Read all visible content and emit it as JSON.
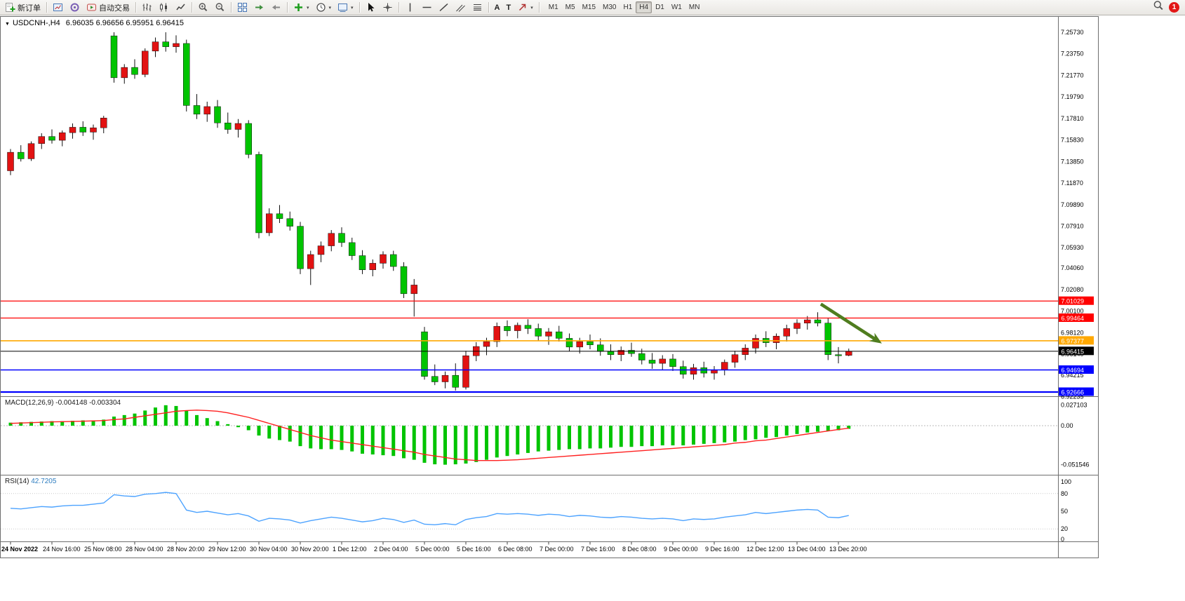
{
  "toolbar": {
    "new_order_label": "新订单",
    "auto_trading_label": "自动交易",
    "text_tool_label": "A",
    "label_tool_label": "T",
    "timeframes": [
      "M1",
      "M5",
      "M15",
      "M30",
      "H1",
      "H4",
      "D1",
      "W1",
      "MN"
    ],
    "active_timeframe": "H4",
    "notification_count": "1"
  },
  "chart": {
    "symbol": "USDCNH-,H4",
    "ohlc_text": "6.96035 6.96656 6.95951 6.96415",
    "macd_title": "MACD(12,26,9)",
    "macd_values": "-0.004148 -0.003304",
    "rsi_title": "RSI(14)",
    "rsi_value": "42.7205"
  },
  "chart_data": {
    "type": "candlestick",
    "symbol": "USDCNH-",
    "timeframe": "H4",
    "x_label_step": 4,
    "x_labels": [
      "24 Nov 2022",
      "24 Nov 16:00",
      "25 Nov 08:00",
      "28 Nov 04:00",
      "28 Nov 20:00",
      "29 Nov 12:00",
      "30 Nov 04:00",
      "30 Nov 20:00",
      "1 Dec 12:00",
      "2 Dec 04:00",
      "5 Dec 00:00",
      "5 Dec 16:00",
      "6 Dec 08:00",
      "7 Dec 00:00",
      "7 Dec 16:00",
      "8 Dec 08:00",
      "9 Dec 00:00",
      "9 Dec 16:00",
      "12 Dec 12:00",
      "13 Dec 04:00",
      "13 Dec 20:00"
    ],
    "price_axis_labels": [
      "7.25730",
      "7.23750",
      "7.21770",
      "7.19790",
      "7.17810",
      "7.15830",
      "7.13850",
      "7.11870",
      "7.09890",
      "7.07910",
      "7.05930",
      "7.04060",
      "7.02080",
      "7.00100",
      "6.98120",
      "6.96140",
      "6.94215",
      "6.92235"
    ],
    "ohlc": [
      [
        7.13,
        7.15,
        7.126,
        7.147
      ],
      [
        7.147,
        7.1535,
        7.1385,
        7.141
      ],
      [
        7.141,
        7.157,
        7.139,
        7.155
      ],
      [
        7.155,
        7.1645,
        7.15,
        7.1615
      ],
      [
        7.1615,
        7.168,
        7.155,
        7.158
      ],
      [
        7.158,
        7.167,
        7.1525,
        7.165
      ],
      [
        7.165,
        7.1735,
        7.1595,
        7.17
      ],
      [
        7.17,
        7.1755,
        7.162,
        7.1655
      ],
      [
        7.1655,
        7.1725,
        7.1585,
        7.1695
      ],
      [
        7.1695,
        7.1805,
        7.1645,
        7.1785
      ],
      [
        7.254,
        7.2573,
        7.211,
        7.2155
      ],
      [
        7.2155,
        7.228,
        7.21,
        7.225
      ],
      [
        7.225,
        7.2325,
        7.2145,
        7.2185
      ],
      [
        7.2185,
        7.2425,
        7.216,
        7.24
      ],
      [
        7.24,
        7.2525,
        7.2345,
        7.2485
      ],
      [
        7.2485,
        7.2573,
        7.2395,
        7.244
      ],
      [
        7.244,
        7.2545,
        7.2385,
        7.247
      ],
      [
        7.247,
        7.2505,
        7.1845,
        7.19
      ],
      [
        7.19,
        7.2005,
        7.1775,
        7.182
      ],
      [
        7.182,
        7.1935,
        7.175,
        7.189
      ],
      [
        7.189,
        7.195,
        7.1695,
        7.174
      ],
      [
        7.174,
        7.1835,
        7.164,
        7.168
      ],
      [
        7.168,
        7.1775,
        7.1605,
        7.1735
      ],
      [
        7.1735,
        7.1765,
        7.1415,
        7.145
      ],
      [
        7.145,
        7.1475,
        7.068,
        7.073
      ],
      [
        7.073,
        7.0955,
        7.07,
        7.0905
      ],
      [
        7.0905,
        7.0985,
        7.082,
        7.086
      ],
      [
        7.086,
        7.0925,
        7.075,
        7.079
      ],
      [
        7.079,
        7.083,
        7.035,
        7.04
      ],
      [
        7.04,
        7.0565,
        7.025,
        7.053
      ],
      [
        7.053,
        7.065,
        7.046,
        7.061
      ],
      [
        7.061,
        7.0755,
        7.056,
        7.0725
      ],
      [
        7.0725,
        7.078,
        7.06,
        7.064
      ],
      [
        7.064,
        7.0685,
        7.048,
        7.052
      ],
      [
        7.052,
        7.057,
        7.035,
        7.039
      ],
      [
        7.039,
        7.0485,
        7.033,
        7.045
      ],
      [
        7.045,
        7.056,
        7.04,
        7.053
      ],
      [
        7.053,
        7.0565,
        7.038,
        7.042
      ],
      [
        7.042,
        7.046,
        7.013,
        7.017
      ],
      [
        7.017,
        7.0305,
        6.996,
        7.025
      ],
      [
        6.982,
        6.9865,
        6.938,
        6.941
      ],
      [
        6.941,
        6.952,
        6.933,
        6.936
      ],
      [
        6.936,
        6.9455,
        6.93,
        6.942
      ],
      [
        6.942,
        6.953,
        6.928,
        6.931
      ],
      [
        6.931,
        6.9645,
        6.929,
        6.96
      ],
      [
        6.96,
        6.9725,
        6.955,
        6.9685
      ],
      [
        6.9685,
        6.9765,
        6.9605,
        6.973
      ],
      [
        6.973,
        6.9905,
        6.968,
        6.987
      ],
      [
        6.987,
        6.9925,
        6.978,
        6.983
      ],
      [
        6.983,
        6.9905,
        6.976,
        6.988
      ],
      [
        6.988,
        6.9935,
        6.98,
        6.985
      ],
      [
        6.985,
        6.9895,
        6.974,
        6.978
      ],
      [
        6.978,
        6.9855,
        6.97,
        6.982
      ],
      [
        6.982,
        6.9875,
        6.973,
        6.976
      ],
      [
        6.976,
        6.9805,
        6.964,
        6.968
      ],
      [
        6.968,
        6.9765,
        6.962,
        6.973
      ],
      [
        6.973,
        6.9795,
        6.966,
        6.97
      ],
      [
        6.97,
        6.976,
        6.96,
        6.964
      ],
      [
        6.964,
        6.9705,
        6.956,
        6.961
      ],
      [
        6.961,
        6.9685,
        6.955,
        6.965
      ],
      [
        6.965,
        6.972,
        6.959,
        6.962
      ],
      [
        6.962,
        6.9665,
        6.952,
        6.956
      ],
      [
        6.956,
        6.9625,
        6.948,
        6.953
      ],
      [
        6.953,
        6.9605,
        6.947,
        6.957
      ],
      [
        6.957,
        6.9615,
        6.946,
        6.95
      ],
      [
        6.95,
        6.9555,
        6.939,
        6.943
      ],
      [
        6.943,
        6.9525,
        6.938,
        6.949
      ],
      [
        6.949,
        6.9545,
        6.94,
        6.944
      ],
      [
        6.944,
        6.9505,
        6.938,
        6.947
      ],
      [
        6.947,
        6.9565,
        6.942,
        6.954
      ],
      [
        6.954,
        6.9645,
        6.949,
        6.961
      ],
      [
        6.961,
        6.9705,
        6.956,
        6.967
      ],
      [
        6.967,
        6.9795,
        6.962,
        6.976
      ],
      [
        6.976,
        6.9825,
        6.968,
        6.972
      ],
      [
        6.972,
        6.9805,
        6.966,
        6.978
      ],
      [
        6.978,
        6.9885,
        6.973,
        6.985
      ],
      [
        6.985,
        6.9935,
        6.98,
        6.99
      ],
      [
        6.99,
        6.9965,
        6.984,
        6.993
      ],
      [
        6.993,
        7.0,
        6.987,
        6.99
      ],
      [
        6.99,
        6.9945,
        6.956,
        6.961
      ],
      [
        6.961,
        6.968,
        6.953,
        6.96
      ],
      [
        6.96035,
        6.96656,
        6.95951,
        6.96415
      ]
    ],
    "price_lines": [
      {
        "price": 7.01029,
        "label": "7.01029",
        "color": "#ff0000",
        "width": 1.3
      },
      {
        "price": 6.99464,
        "label": "6.99464",
        "color": "#ff0000",
        "width": 1.3
      },
      {
        "price": 6.97377,
        "label": "6.97377",
        "color": "#ffa800",
        "width": 1.6
      },
      {
        "price": 6.96415,
        "label": "6.96415",
        "color": "#000000",
        "width": 1
      },
      {
        "price": 6.94694,
        "label": "6.94694",
        "color": "#0000ff",
        "width": 1.5
      },
      {
        "price": 6.92666,
        "label": "6.92666",
        "color": "#0000ff",
        "width": 2.2
      }
    ],
    "macd": {
      "axis_labels": [
        "0.027103",
        "0.00",
        "-0.051546"
      ],
      "histogram": [
        0.004,
        0.0045,
        0.005,
        0.0055,
        0.006,
        0.006,
        0.0065,
        0.007,
        0.007,
        0.008,
        0.012,
        0.014,
        0.016,
        0.02,
        0.024,
        0.027,
        0.026,
        0.02,
        0.014,
        0.01,
        0.006,
        0.002,
        -0.002,
        -0.006,
        -0.013,
        -0.017,
        -0.019,
        -0.021,
        -0.027,
        -0.03,
        -0.031,
        -0.031,
        -0.032,
        -0.034,
        -0.037,
        -0.038,
        -0.039,
        -0.04,
        -0.043,
        -0.045,
        -0.049,
        -0.051,
        -0.0515,
        -0.051,
        -0.05,
        -0.048,
        -0.045,
        -0.042,
        -0.04,
        -0.038,
        -0.036,
        -0.034,
        -0.033,
        -0.032,
        -0.031,
        -0.031,
        -0.03,
        -0.03,
        -0.029,
        -0.028,
        -0.028,
        -0.027,
        -0.027,
        -0.026,
        -0.026,
        -0.026,
        -0.025,
        -0.024,
        -0.023,
        -0.022,
        -0.021,
        -0.019,
        -0.018,
        -0.016,
        -0.015,
        -0.013,
        -0.011,
        -0.009,
        -0.008,
        -0.007,
        -0.006,
        -0.004148
      ],
      "signal": [
        0.003,
        0.0035,
        0.004,
        0.0045,
        0.005,
        0.0053,
        0.0056,
        0.006,
        0.0063,
        0.0068,
        0.008,
        0.009,
        0.011,
        0.013,
        0.015,
        0.017,
        0.019,
        0.02,
        0.0205,
        0.02,
        0.019,
        0.017,
        0.014,
        0.011,
        0.007,
        0.003,
        -0.001,
        -0.005,
        -0.009,
        -0.013,
        -0.016,
        -0.019,
        -0.021,
        -0.023,
        -0.025,
        -0.027,
        -0.029,
        -0.031,
        -0.033,
        -0.035,
        -0.038,
        -0.04,
        -0.042,
        -0.044,
        -0.045,
        -0.046,
        -0.046,
        -0.046,
        -0.0455,
        -0.045,
        -0.044,
        -0.043,
        -0.042,
        -0.041,
        -0.04,
        -0.039,
        -0.038,
        -0.037,
        -0.036,
        -0.035,
        -0.034,
        -0.033,
        -0.032,
        -0.031,
        -0.03,
        -0.029,
        -0.028,
        -0.027,
        -0.026,
        -0.025,
        -0.023,
        -0.022,
        -0.02,
        -0.019,
        -0.017,
        -0.015,
        -0.013,
        -0.011,
        -0.009,
        -0.007,
        -0.005,
        -0.003304
      ]
    },
    "rsi": {
      "axis_labels": [
        "100",
        "80",
        "50",
        "20",
        "0"
      ],
      "levels": [
        80,
        20
      ],
      "values": [
        55,
        54,
        56,
        58,
        57,
        59,
        60,
        60,
        62,
        64,
        78,
        76,
        75,
        79,
        80,
        82,
        80,
        52,
        48,
        50,
        47,
        44,
        46,
        42,
        33,
        38,
        37,
        35,
        30,
        34,
        37,
        40,
        38,
        35,
        32,
        34,
        38,
        36,
        31,
        35,
        28,
        27,
        29,
        27,
        36,
        39,
        41,
        46,
        45,
        46,
        45,
        43,
        45,
        44,
        41,
        43,
        42,
        40,
        39,
        41,
        40,
        38,
        37,
        38,
        37,
        34,
        37,
        36,
        37,
        40,
        42,
        44,
        48,
        46,
        48,
        50,
        52,
        53,
        52,
        40,
        39,
        42.72
      ]
    },
    "arrow": {
      "from_bar": 78.3,
      "from_price": 7.0075,
      "to_bar": 84.2,
      "to_price": 6.9713
    },
    "colors": {
      "up": "#e21212",
      "down": "#00c400",
      "macd_histogram": "#00c400",
      "macd_signal": "#ff2020",
      "rsi": "#4da3ff",
      "arrow": "#4f7d1f"
    }
  }
}
